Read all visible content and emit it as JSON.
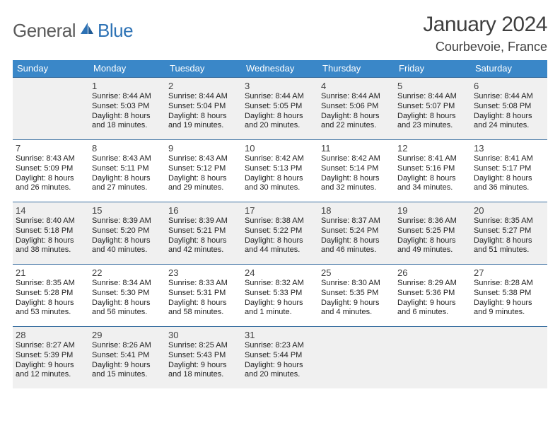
{
  "logo": {
    "text1": "General",
    "text2": "Blue"
  },
  "title": "January 2024",
  "location": "Courbevoie, France",
  "colors": {
    "header_bg": "#3a87c8",
    "header_text": "#ffffff",
    "rule": "#3a6fa0",
    "shaded_bg": "#f0f0f0",
    "cell_bg": "#ffffff",
    "text": "#222222",
    "logo_gray": "#5b5b5b",
    "logo_blue": "#2d72b5"
  },
  "day_names": [
    "Sunday",
    "Monday",
    "Tuesday",
    "Wednesday",
    "Thursday",
    "Friday",
    "Saturday"
  ],
  "weeks": [
    {
      "shaded": true,
      "cells": [
        {
          "blank": true
        },
        {
          "n": "1",
          "sr": "Sunrise: 8:44 AM",
          "ss": "Sunset: 5:03 PM",
          "d1": "Daylight: 8 hours",
          "d2": "and 18 minutes."
        },
        {
          "n": "2",
          "sr": "Sunrise: 8:44 AM",
          "ss": "Sunset: 5:04 PM",
          "d1": "Daylight: 8 hours",
          "d2": "and 19 minutes."
        },
        {
          "n": "3",
          "sr": "Sunrise: 8:44 AM",
          "ss": "Sunset: 5:05 PM",
          "d1": "Daylight: 8 hours",
          "d2": "and 20 minutes."
        },
        {
          "n": "4",
          "sr": "Sunrise: 8:44 AM",
          "ss": "Sunset: 5:06 PM",
          "d1": "Daylight: 8 hours",
          "d2": "and 22 minutes."
        },
        {
          "n": "5",
          "sr": "Sunrise: 8:44 AM",
          "ss": "Sunset: 5:07 PM",
          "d1": "Daylight: 8 hours",
          "d2": "and 23 minutes."
        },
        {
          "n": "6",
          "sr": "Sunrise: 8:44 AM",
          "ss": "Sunset: 5:08 PM",
          "d1": "Daylight: 8 hours",
          "d2": "and 24 minutes."
        }
      ]
    },
    {
      "shaded": false,
      "cells": [
        {
          "n": "7",
          "sr": "Sunrise: 8:43 AM",
          "ss": "Sunset: 5:09 PM",
          "d1": "Daylight: 8 hours",
          "d2": "and 26 minutes."
        },
        {
          "n": "8",
          "sr": "Sunrise: 8:43 AM",
          "ss": "Sunset: 5:11 PM",
          "d1": "Daylight: 8 hours",
          "d2": "and 27 minutes."
        },
        {
          "n": "9",
          "sr": "Sunrise: 8:43 AM",
          "ss": "Sunset: 5:12 PM",
          "d1": "Daylight: 8 hours",
          "d2": "and 29 minutes."
        },
        {
          "n": "10",
          "sr": "Sunrise: 8:42 AM",
          "ss": "Sunset: 5:13 PM",
          "d1": "Daylight: 8 hours",
          "d2": "and 30 minutes."
        },
        {
          "n": "11",
          "sr": "Sunrise: 8:42 AM",
          "ss": "Sunset: 5:14 PM",
          "d1": "Daylight: 8 hours",
          "d2": "and 32 minutes."
        },
        {
          "n": "12",
          "sr": "Sunrise: 8:41 AM",
          "ss": "Sunset: 5:16 PM",
          "d1": "Daylight: 8 hours",
          "d2": "and 34 minutes."
        },
        {
          "n": "13",
          "sr": "Sunrise: 8:41 AM",
          "ss": "Sunset: 5:17 PM",
          "d1": "Daylight: 8 hours",
          "d2": "and 36 minutes."
        }
      ]
    },
    {
      "shaded": true,
      "cells": [
        {
          "n": "14",
          "sr": "Sunrise: 8:40 AM",
          "ss": "Sunset: 5:18 PM",
          "d1": "Daylight: 8 hours",
          "d2": "and 38 minutes."
        },
        {
          "n": "15",
          "sr": "Sunrise: 8:39 AM",
          "ss": "Sunset: 5:20 PM",
          "d1": "Daylight: 8 hours",
          "d2": "and 40 minutes."
        },
        {
          "n": "16",
          "sr": "Sunrise: 8:39 AM",
          "ss": "Sunset: 5:21 PM",
          "d1": "Daylight: 8 hours",
          "d2": "and 42 minutes."
        },
        {
          "n": "17",
          "sr": "Sunrise: 8:38 AM",
          "ss": "Sunset: 5:22 PM",
          "d1": "Daylight: 8 hours",
          "d2": "and 44 minutes."
        },
        {
          "n": "18",
          "sr": "Sunrise: 8:37 AM",
          "ss": "Sunset: 5:24 PM",
          "d1": "Daylight: 8 hours",
          "d2": "and 46 minutes."
        },
        {
          "n": "19",
          "sr": "Sunrise: 8:36 AM",
          "ss": "Sunset: 5:25 PM",
          "d1": "Daylight: 8 hours",
          "d2": "and 49 minutes."
        },
        {
          "n": "20",
          "sr": "Sunrise: 8:35 AM",
          "ss": "Sunset: 5:27 PM",
          "d1": "Daylight: 8 hours",
          "d2": "and 51 minutes."
        }
      ]
    },
    {
      "shaded": false,
      "cells": [
        {
          "n": "21",
          "sr": "Sunrise: 8:35 AM",
          "ss": "Sunset: 5:28 PM",
          "d1": "Daylight: 8 hours",
          "d2": "and 53 minutes."
        },
        {
          "n": "22",
          "sr": "Sunrise: 8:34 AM",
          "ss": "Sunset: 5:30 PM",
          "d1": "Daylight: 8 hours",
          "d2": "and 56 minutes."
        },
        {
          "n": "23",
          "sr": "Sunrise: 8:33 AM",
          "ss": "Sunset: 5:31 PM",
          "d1": "Daylight: 8 hours",
          "d2": "and 58 minutes."
        },
        {
          "n": "24",
          "sr": "Sunrise: 8:32 AM",
          "ss": "Sunset: 5:33 PM",
          "d1": "Daylight: 9 hours",
          "d2": "and 1 minute."
        },
        {
          "n": "25",
          "sr": "Sunrise: 8:30 AM",
          "ss": "Sunset: 5:35 PM",
          "d1": "Daylight: 9 hours",
          "d2": "and 4 minutes."
        },
        {
          "n": "26",
          "sr": "Sunrise: 8:29 AM",
          "ss": "Sunset: 5:36 PM",
          "d1": "Daylight: 9 hours",
          "d2": "and 6 minutes."
        },
        {
          "n": "27",
          "sr": "Sunrise: 8:28 AM",
          "ss": "Sunset: 5:38 PM",
          "d1": "Daylight: 9 hours",
          "d2": "and 9 minutes."
        }
      ]
    },
    {
      "shaded": true,
      "cells": [
        {
          "n": "28",
          "sr": "Sunrise: 8:27 AM",
          "ss": "Sunset: 5:39 PM",
          "d1": "Daylight: 9 hours",
          "d2": "and 12 minutes."
        },
        {
          "n": "29",
          "sr": "Sunrise: 8:26 AM",
          "ss": "Sunset: 5:41 PM",
          "d1": "Daylight: 9 hours",
          "d2": "and 15 minutes."
        },
        {
          "n": "30",
          "sr": "Sunrise: 8:25 AM",
          "ss": "Sunset: 5:43 PM",
          "d1": "Daylight: 9 hours",
          "d2": "and 18 minutes."
        },
        {
          "n": "31",
          "sr": "Sunrise: 8:23 AM",
          "ss": "Sunset: 5:44 PM",
          "d1": "Daylight: 9 hours",
          "d2": "and 20 minutes."
        },
        {
          "blank": true
        },
        {
          "blank": true
        },
        {
          "blank": true
        }
      ]
    }
  ]
}
